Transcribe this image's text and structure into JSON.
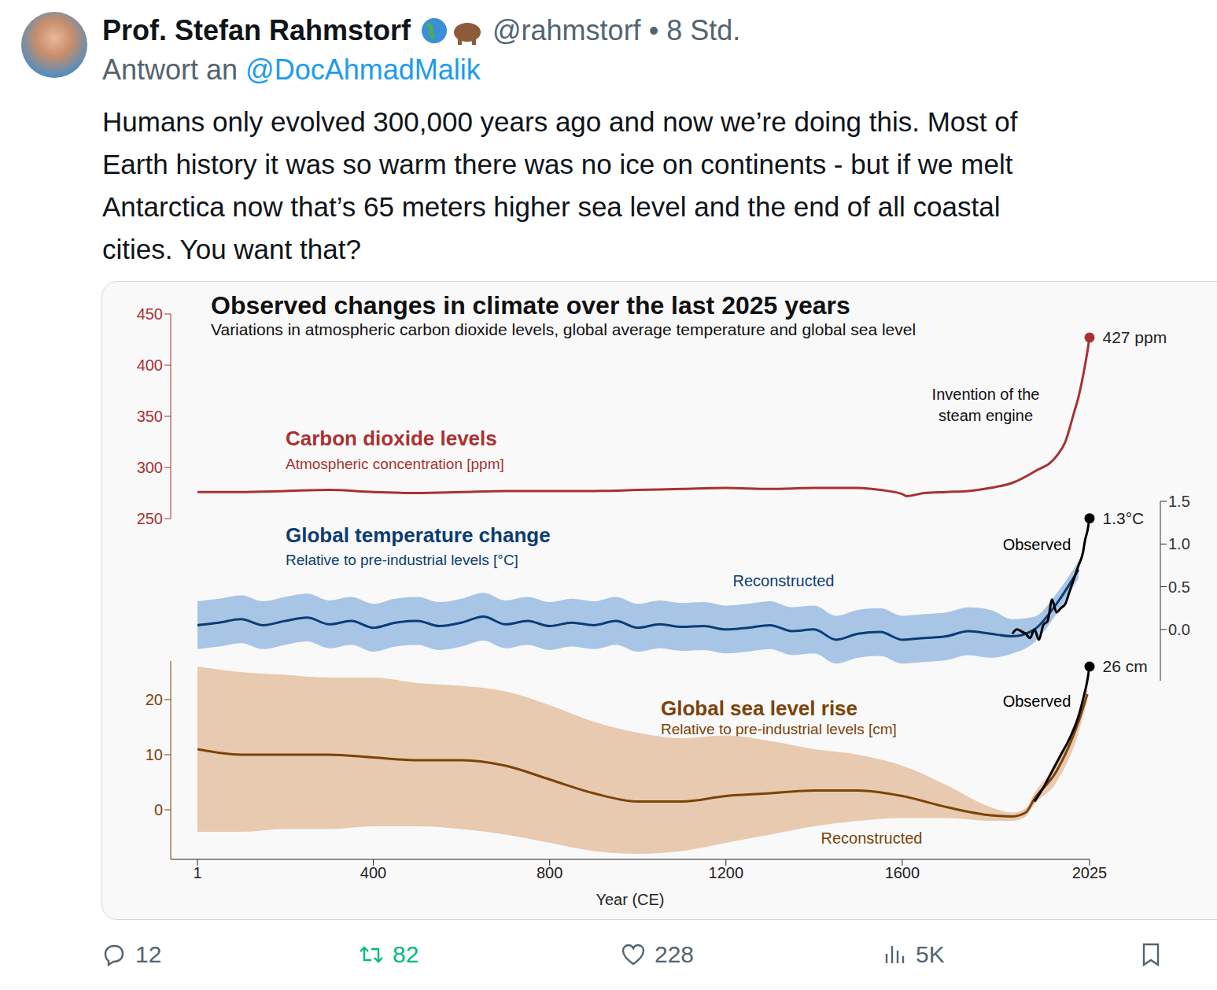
{
  "tweet": {
    "name": "Prof. Stefan Rahmstorf",
    "handle": "@rahmstorf",
    "separator": "•",
    "time": "8 Std.",
    "reply_prefix": "Antwort an",
    "reply_to": "@DocAhmadMalik",
    "text_lines": [
      "Humans only evolved 300,000 years ago and now we’re doing this. Most of",
      "Earth history it was so warm there was no ice on continents - but if we melt",
      "Antarctica now that’s 65 meters higher sea level and the end of all coastal",
      "cities. You want that?"
    ],
    "stats": {
      "replies": "12",
      "retweets": "82",
      "likes": "228",
      "views": "5K"
    }
  },
  "chart_data": {
    "type": "line",
    "title": "Observed changes in climate over the last 2025 years",
    "subtitle": "Variations in atmospheric carbon dioxide levels, global average temperature and global sea level",
    "x_label": "Year (CE)",
    "xlim": [
      1,
      2025
    ],
    "xticks": [
      1,
      400,
      800,
      1200,
      1600,
      2025
    ],
    "annotations": [
      {
        "text": "Invention of the steam engine",
        "x": 1788,
        "line_style": "dashed"
      }
    ],
    "panels": [
      {
        "title": "Carbon dioxide levels",
        "subtitle": "Atmospheric concentration [ppm]",
        "color": "#a83232",
        "ylim": [
          250,
          450
        ],
        "yticks": [
          250,
          300,
          350,
          400,
          450
        ],
        "series": [
          {
            "type": "line",
            "color": "#a83232",
            "end_label": "427 ppm",
            "x": [
              1,
              100,
              200,
              300,
              400,
              500,
              600,
              700,
              800,
              900,
              1000,
              1100,
              1200,
              1300,
              1400,
              1500,
              1550,
              1600,
              1610,
              1650,
              1700,
              1750,
              1800,
              1850,
              1900,
              1950,
              1970,
              1990,
              2000,
              2010,
              2020,
              2025
            ],
            "values": [
              276,
              276,
              277,
              278,
              276,
              275,
              276,
              277,
              277,
              277,
              278,
              279,
              280,
              279,
              280,
              280,
              278,
              274,
              272,
              275,
              276,
              277,
              280,
              285,
              296,
              311,
              325,
              354,
              369,
              389,
              413,
              427
            ]
          }
        ]
      },
      {
        "title": "Global temperature change",
        "subtitle": "Relative to pre-industrial levels [°C]",
        "color": "#0b3d73",
        "y2lim": [
          -0.6,
          1.5
        ],
        "y2ticks": [
          {
            "value": 0,
            "label": "0.0"
          },
          0.5,
          {
            "value": 1,
            "label": "1.0"
          },
          1.5
        ],
        "series": [
          {
            "type": "band",
            "color": "#a9c5e6",
            "axis": "y2",
            "x": [
              1,
              50,
              100,
              150,
              200,
              250,
              300,
              350,
              400,
              450,
              500,
              550,
              600,
              650,
              700,
              750,
              800,
              850,
              900,
              950,
              1000,
              1050,
              1100,
              1150,
              1200,
              1250,
              1300,
              1350,
              1400,
              1450,
              1500,
              1550,
              1600,
              1650,
              1700,
              1750,
              1800,
              1850,
              1900,
              1950,
              2000
            ],
            "low": [
              -0.23,
              -0.2,
              -0.16,
              -0.23,
              -0.18,
              -0.14,
              -0.22,
              -0.18,
              -0.26,
              -0.2,
              -0.18,
              -0.24,
              -0.2,
              -0.13,
              -0.22,
              -0.18,
              -0.24,
              -0.2,
              -0.23,
              -0.18,
              -0.26,
              -0.22,
              -0.25,
              -0.24,
              -0.28,
              -0.26,
              -0.23,
              -0.3,
              -0.28,
              -0.4,
              -0.33,
              -0.31,
              -0.4,
              -0.38,
              -0.36,
              -0.3,
              -0.33,
              -0.28,
              -0.15,
              0.18,
              0.6
            ],
            "high": [
              0.33,
              0.36,
              0.4,
              0.33,
              0.38,
              0.42,
              0.34,
              0.38,
              0.3,
              0.36,
              0.38,
              0.32,
              0.36,
              0.43,
              0.34,
              0.38,
              0.32,
              0.36,
              0.33,
              0.38,
              0.3,
              0.34,
              0.31,
              0.32,
              0.28,
              0.3,
              0.33,
              0.26,
              0.28,
              0.16,
              0.23,
              0.25,
              0.16,
              0.18,
              0.2,
              0.26,
              0.23,
              0.12,
              0.15,
              0.42,
              0.8
            ]
          },
          {
            "type": "line",
            "name": "Reconstructed",
            "color": "#0b3d73",
            "axis": "y2",
            "x": [
              1,
              50,
              100,
              150,
              200,
              250,
              300,
              350,
              400,
              450,
              500,
              550,
              600,
              650,
              700,
              750,
              800,
              850,
              900,
              950,
              1000,
              1050,
              1100,
              1150,
              1200,
              1250,
              1300,
              1350,
              1400,
              1450,
              1500,
              1550,
              1600,
              1650,
              1700,
              1750,
              1800,
              1850,
              1900,
              1950,
              2000
            ],
            "values": [
              0.05,
              0.08,
              0.12,
              0.05,
              0.1,
              0.14,
              0.06,
              0.1,
              0.02,
              0.08,
              0.1,
              0.04,
              0.08,
              0.15,
              0.06,
              0.1,
              0.04,
              0.08,
              0.05,
              0.1,
              0.02,
              0.06,
              0.03,
              0.04,
              0,
              0.02,
              0.05,
              -0.02,
              0,
              -0.12,
              -0.05,
              -0.03,
              -0.12,
              -0.1,
              -0.08,
              -0.02,
              -0.05,
              -0.08,
              0,
              0.3,
              0.7
            ]
          },
          {
            "type": "line",
            "name": "Observed",
            "color": "#000000",
            "axis": "y2",
            "end_label": "1.3°C",
            "x": [
              1850,
              1860,
              1870,
              1880,
              1890,
              1900,
              1910,
              1920,
              1930,
              1940,
              1950,
              1960,
              1970,
              1980,
              1990,
              2000,
              2010,
              2015,
              2020,
              2025
            ],
            "values": [
              -0.05,
              0,
              -0.02,
              -0.05,
              -0.1,
              0,
              -0.12,
              0.05,
              0.1,
              0.35,
              0.2,
              0.25,
              0.3,
              0.45,
              0.6,
              0.75,
              0.9,
              1.05,
              1.15,
              1.3
            ]
          }
        ]
      },
      {
        "title": "Global sea level rise",
        "subtitle": "Relative to pre-industrial levels [cm]",
        "color": "#7b4308",
        "ylim": [
          -9,
          27
        ],
        "yticks": [
          0,
          10,
          20
        ],
        "series": [
          {
            "type": "band",
            "color": "#e8cab0",
            "x": [
              1,
              100,
              200,
              300,
              400,
              500,
              600,
              700,
              800,
              900,
              1000,
              1100,
              1200,
              1300,
              1400,
              1500,
              1600,
              1700,
              1800,
              1850,
              1880,
              1900,
              1950,
              2000,
              2020
            ],
            "low": [
              -4,
              -4,
              -3.5,
              -3.5,
              -3,
              -3,
              -3.5,
              -4.5,
              -6,
              -7.5,
              -8,
              -7.5,
              -6,
              -4.5,
              -3,
              -2,
              -1.5,
              -1.5,
              -2,
              -2,
              -1.2,
              1,
              5,
              14,
              20
            ],
            "high": [
              26,
              25,
              24.5,
              24,
              24,
              23,
              22.5,
              21.5,
              19,
              16,
              14,
              13,
              13.5,
              12.5,
              11,
              10,
              8,
              4.5,
              0.5,
              -0.5,
              0.3,
              3,
              8.5,
              17.5,
              22
            ]
          },
          {
            "type": "line",
            "name": "Reconstructed",
            "color": "#7b4308",
            "x": [
              1,
              100,
              200,
              300,
              400,
              500,
              600,
              700,
              800,
              900,
              1000,
              1100,
              1200,
              1300,
              1400,
              1500,
              1600,
              1700,
              1800,
              1850,
              1880,
              1900,
              1950,
              2000,
              2020
            ],
            "values": [
              11,
              10,
              10,
              10,
              9.5,
              9,
              9,
              8,
              5.5,
              3,
              1.5,
              1.5,
              2.5,
              3,
              3.5,
              3.5,
              2.5,
              0.5,
              -1,
              -1.2,
              -0.5,
              2,
              7,
              16,
              21
            ]
          },
          {
            "type": "line",
            "name": "Observed",
            "color": "#000000",
            "end_label": "26 cm",
            "x": [
              1900,
              1920,
              1940,
              1960,
              1980,
              2000,
              2010,
              2020,
              2025
            ],
            "values": [
              1.5,
              4,
              7,
              10,
              13,
              17,
              20,
              23.5,
              26
            ]
          }
        ]
      }
    ]
  }
}
